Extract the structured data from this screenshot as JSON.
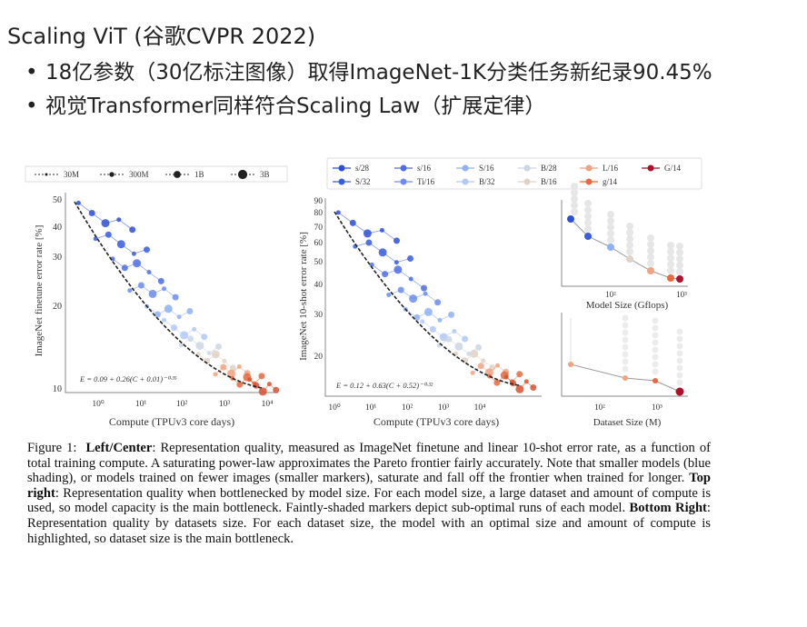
{
  "slide": {
    "title": "Scaling ViT (谷歌CVPR 2022)",
    "bullets": [
      "18亿参数（30亿标注图像）取得ImageNet-1K分类任务新纪录90.45%",
      "视觉Transformer同样符合Scaling Law（扩展定律）"
    ],
    "bullet_symbol": "•"
  },
  "figure": {
    "left_plot": {
      "legend": [
        "30M",
        "300M",
        "1B",
        "3B"
      ],
      "ylabel": "ImageNet finetune error rate [%]",
      "xlabel": "Compute (TPUv3 core days)",
      "yticks": [
        "50",
        "40",
        "30",
        "20",
        "10"
      ],
      "xticks": [
        "10⁰",
        "10¹",
        "10²",
        "10³",
        "10⁴"
      ],
      "equation": "E = 0.09 + 0.26(C + 0.01)⁻⁰·³⁵"
    },
    "center_plot": {
      "legend": [
        "s/28",
        "s/16",
        "S/16",
        "B/28",
        "L/16",
        "G/14",
        "S/32",
        "Ti/16",
        "B/32",
        "B/16",
        "g/14"
      ],
      "legend_colors": [
        "#2f4fd8",
        "#4d6fe6",
        "#8fb0f5",
        "#ccd6e4",
        "#f2a27f",
        "#b0102a",
        "#3a5ce0",
        "#6b8cf0",
        "#b3c8f7",
        "#e0d2c6",
        "#e8693f"
      ],
      "ylabel": "ImageNet 10-shot error rate [%]",
      "xlabel": "Compute (TPUv3 core days)",
      "yticks": [
        "90",
        "80",
        "70",
        "60",
        "50",
        "40",
        "30",
        "20"
      ],
      "xticks": [
        "10⁰",
        "10¹",
        "10²",
        "10³",
        "10⁴"
      ],
      "equation": "E = 0.12 + 0.63(C + 0.52)⁻⁰·³²"
    },
    "top_right_plot": {
      "xlabel": "Model Size (Gflops)",
      "xticks": [
        "10²",
        "10³"
      ]
    },
    "bottom_right_plot": {
      "xlabel": "Dataset Size (M)",
      "xticks": [
        "10²",
        "10³"
      ]
    }
  },
  "caption": {
    "label": "Figure 1:",
    "b1": "Left/Center",
    "t1": ": Representation quality, measured as ImageNet finetune and linear 10-shot error rate, as a function of total training compute. A saturating power-law approximates the Pareto frontier fairly accurately. Note that smaller models (blue shading), or models trained on fewer images (smaller markers), saturate and fall off the frontier when trained for longer.",
    "b2": "Top right",
    "t2": ": Representation quality when bottlenecked by model size. For each model size, a large dataset and amount of compute is used, so model capacity is the main bottleneck. Faintly-shaded markers depict sub-optimal runs of each model.",
    "b3": "Bottom Right",
    "t3": ": Representation quality by datasets size. For each dataset size, the model with an optimal size and amount of compute is highlighted, so dataset size is the main bottleneck."
  }
}
